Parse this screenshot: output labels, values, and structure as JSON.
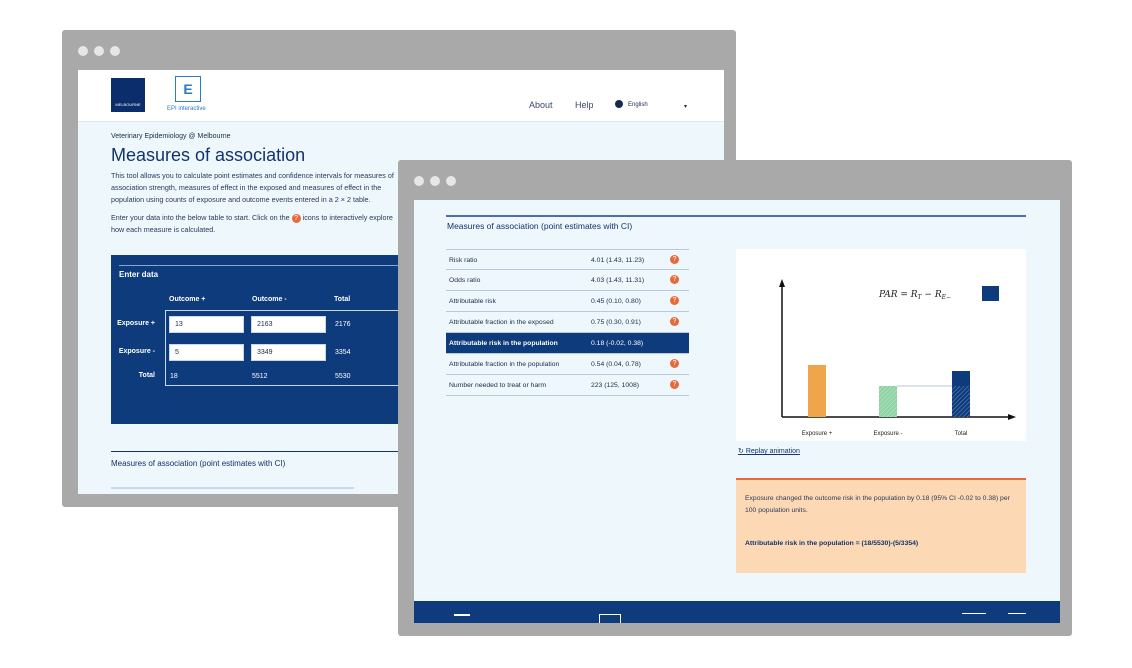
{
  "back_window": {
    "nav": {
      "about": "About",
      "help": "Help",
      "language": "English",
      "caret": "▾"
    },
    "epi_logo": "E",
    "epi_text": "EPI interactive",
    "uni_logo_text": "MELBOURNE",
    "kicker": "Veterinary Epidemiology @ Melbourne",
    "title": "Measures of association",
    "intro": "This tool allows you to calculate point estimates and confidence intervals for measures of association strength, measures of effect in the exposed and measures of effect in the population using counts of exposure and outcome events entered in a 2 × 2 table.",
    "intro2_a": "Enter your data into the below table to start. Click on the",
    "intro2_b": "icons to interactively explore how each measure is calculated.",
    "enter_data": {
      "title": "Enter data",
      "col_headers": [
        "Outcome +",
        "Outcome -",
        "Total"
      ],
      "row_headers": [
        "Exposure +",
        "Exposure -",
        "Total"
      ],
      "cells": [
        [
          "13",
          "2163",
          "2176"
        ],
        [
          "5",
          "3349",
          "3354"
        ],
        [
          "18",
          "5512",
          "5530"
        ]
      ]
    },
    "section_title": "Measures of association (point estimates with CI)"
  },
  "front_window": {
    "section_title": "Measures of association (point estimates with CI)",
    "measures": [
      {
        "label": "Risk ratio",
        "value": "4.01 (1.43, 11.23)",
        "info": true
      },
      {
        "label": "Odds ratio",
        "value": "4.03 (1.43, 11.31)",
        "info": true
      },
      {
        "label": "Attributable risk",
        "value": "0.45 (0.10, 0.80)",
        "info": true
      },
      {
        "label": "Attributable fraction in the exposed",
        "value": "0.75 (0.30, 0.91)",
        "info": true
      },
      {
        "label": "Attributable risk in the population",
        "value": "0.18 (-0.02, 0.38)",
        "info": false
      },
      {
        "label": "Attributable fraction in the population",
        "value": "0.54 (0.04, 0.78)",
        "info": true
      },
      {
        "label": "Number needed to treat or harm",
        "value": "223 (125, 1008)",
        "info": true
      }
    ],
    "chart": {
      "formula": "PAR = R_T − R_E−",
      "categories": [
        "Exposure +",
        "Exposure -",
        "Total"
      ],
      "colors": {
        "exposed": "#f0a54a",
        "unexposed": "#8fd2a4",
        "total": "#0d3b7c"
      }
    },
    "replay_label": "Replay animation",
    "explanation": "Exposure changed the outcome risk in the population by 0.18 (95% CI -0.02 to 0.38) per 100 population units.",
    "formula_label": "Attributable risk in the population =",
    "formula_value": "(18/5530)-(5/3354)"
  },
  "accent_colors": {
    "navy": "#0d3b7c",
    "orange": "#e8683a",
    "peach": "#fcd8b4"
  }
}
